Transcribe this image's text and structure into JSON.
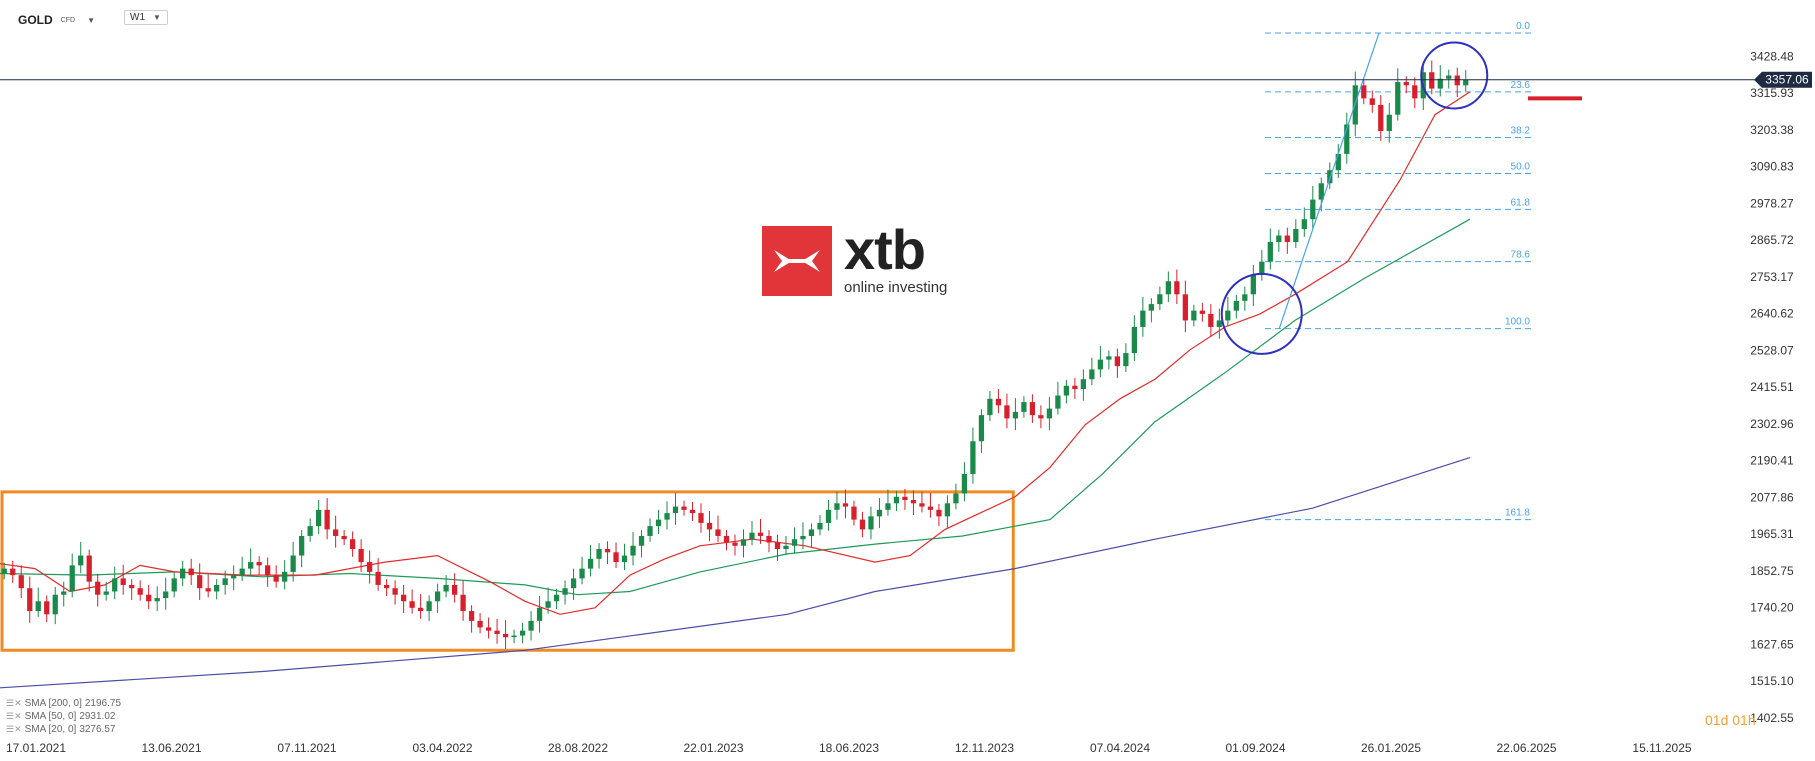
{
  "toolbar": {
    "symbol": "GOLD",
    "symbol_type": "CFD",
    "timeframe": "W1"
  },
  "logo": {
    "wordmark": "xtb",
    "tagline": "online investing"
  },
  "timer": {
    "days": "01",
    "d_unit": "d",
    "hours": "01",
    "h_unit": "h"
  },
  "legend": [
    {
      "label": "SMA [200, 0]",
      "value": "2196.75"
    },
    {
      "label": "SMA [50, 0]",
      "value": "2931.02"
    },
    {
      "label": "SMA [20, 0]",
      "value": "3276.57"
    }
  ],
  "chart_data": {
    "type": "candlestick",
    "instrument": "GOLD",
    "timeframe": "W1",
    "ylim": [
      1402.55,
      3540.0
    ],
    "y_ticks": [
      3428.48,
      3315.93,
      3203.38,
      3090.83,
      2978.27,
      2865.72,
      2753.17,
      2640.62,
      2528.07,
      2415.51,
      2302.96,
      2190.41,
      2077.86,
      1965.31,
      1852.75,
      1740.2,
      1627.65,
      1515.1,
      1402.55
    ],
    "x_ticks": [
      "17.01.2021",
      "13.06.2021",
      "07.11.2021",
      "03.04.2022",
      "28.08.2022",
      "22.01.2023",
      "18.06.2023",
      "12.11.2023",
      "07.04.2024",
      "01.09.2024",
      "26.01.2025",
      "22.06.2025",
      "15.11.2025"
    ],
    "current_price": {
      "value": 3357.06,
      "label": "3357.06",
      "color": "#1f2a44"
    },
    "fib_levels": [
      {
        "label": "0.0",
        "value": 3500.0
      },
      {
        "label": "23.6",
        "value": 3320.0
      },
      {
        "label": "38.2",
        "value": 3180.0
      },
      {
        "label": "50.0",
        "value": 3070.0
      },
      {
        "label": "61.8",
        "value": 2960.0
      },
      {
        "label": "78.6",
        "value": 2800.0
      },
      {
        "label": "100.0",
        "value": 2595.0
      },
      {
        "label": "161.8",
        "value": 2010.0
      }
    ],
    "support_level": 3300,
    "range_box": {
      "x_start": 0,
      "x_end": 0.579,
      "y_top": 2095,
      "y_bottom": 1610,
      "color": "#f08a24"
    },
    "trendline": [
      {
        "x": 0.731,
        "y": 2595
      },
      {
        "x": 0.788,
        "y": 3500
      }
    ],
    "circles": [
      {
        "x": 0.721,
        "y": 2640,
        "r": 40
      },
      {
        "x": 0.831,
        "y": 3370,
        "r": 33
      }
    ],
    "colors": {
      "up": "#1a8a4a",
      "down": "#d8202c",
      "sma20": "#e32b2b",
      "sma50": "#1f9a5a",
      "sma200": "#4a4ea8",
      "fib": "#4aa3e8",
      "axis_text": "#333333"
    },
    "sma200": [
      [
        0.0,
        1495
      ],
      [
        0.15,
        1545
      ],
      [
        0.3,
        1610
      ],
      [
        0.45,
        1720
      ],
      [
        0.5,
        1790
      ],
      [
        0.58,
        1860
      ],
      [
        0.66,
        1950
      ],
      [
        0.75,
        2045
      ],
      [
        0.84,
        2200
      ]
    ],
    "sma50": [
      [
        0.0,
        1845
      ],
      [
        0.05,
        1840
      ],
      [
        0.1,
        1850
      ],
      [
        0.15,
        1835
      ],
      [
        0.2,
        1845
      ],
      [
        0.25,
        1830
      ],
      [
        0.3,
        1810
      ],
      [
        0.33,
        1780
      ],
      [
        0.36,
        1790
      ],
      [
        0.4,
        1850
      ],
      [
        0.45,
        1905
      ],
      [
        0.5,
        1935
      ],
      [
        0.55,
        1960
      ],
      [
        0.58,
        1990
      ],
      [
        0.6,
        2010
      ],
      [
        0.63,
        2150
      ],
      [
        0.66,
        2310
      ],
      [
        0.7,
        2460
      ],
      [
        0.74,
        2620
      ],
      [
        0.78,
        2750
      ],
      [
        0.84,
        2930
      ]
    ],
    "sma20": [
      [
        0.0,
        1875
      ],
      [
        0.02,
        1860
      ],
      [
        0.04,
        1790
      ],
      [
        0.06,
        1810
      ],
      [
        0.08,
        1870
      ],
      [
        0.1,
        1850
      ],
      [
        0.14,
        1840
      ],
      [
        0.18,
        1840
      ],
      [
        0.22,
        1880
      ],
      [
        0.25,
        1900
      ],
      [
        0.28,
        1820
      ],
      [
        0.3,
        1760
      ],
      [
        0.32,
        1720
      ],
      [
        0.34,
        1740
      ],
      [
        0.36,
        1840
      ],
      [
        0.38,
        1890
      ],
      [
        0.4,
        1930
      ],
      [
        0.43,
        1950
      ],
      [
        0.46,
        1930
      ],
      [
        0.5,
        1880
      ],
      [
        0.52,
        1900
      ],
      [
        0.54,
        1980
      ],
      [
        0.56,
        2030
      ],
      [
        0.58,
        2080
      ],
      [
        0.6,
        2170
      ],
      [
        0.62,
        2300
      ],
      [
        0.64,
        2380
      ],
      [
        0.66,
        2440
      ],
      [
        0.68,
        2530
      ],
      [
        0.7,
        2600
      ],
      [
        0.72,
        2640
      ],
      [
        0.74,
        2700
      ],
      [
        0.77,
        2800
      ],
      [
        0.8,
        3050
      ],
      [
        0.82,
        3250
      ],
      [
        0.84,
        3320
      ]
    ],
    "closes": [
      1860,
      1840,
      1800,
      1730,
      1760,
      1720,
      1780,
      1790,
      1870,
      1900,
      1820,
      1780,
      1790,
      1830,
      1810,
      1800,
      1780,
      1760,
      1770,
      1790,
      1830,
      1860,
      1840,
      1800,
      1790,
      1810,
      1830,
      1840,
      1860,
      1880,
      1870,
      1840,
      1820,
      1850,
      1900,
      1960,
      1990,
      2040,
      1980,
      1960,
      1950,
      1920,
      1880,
      1850,
      1810,
      1800,
      1780,
      1760,
      1740,
      1730,
      1760,
      1790,
      1810,
      1780,
      1730,
      1700,
      1680,
      1670,
      1660,
      1650,
      1655,
      1670,
      1700,
      1740,
      1760,
      1780,
      1800,
      1830,
      1860,
      1890,
      1920,
      1910,
      1880,
      1900,
      1930,
      1960,
      1990,
      2010,
      2030,
      2050,
      2040,
      2030,
      2000,
      1980,
      1960,
      1940,
      1930,
      1950,
      1970,
      1960,
      1940,
      1920,
      1930,
      1950,
      1960,
      1980,
      2000,
      2040,
      2060,
      2050,
      2010,
      1980,
      2020,
      2040,
      2060,
      2080,
      2070,
      2060,
      2050,
      2040,
      2020,
      2060,
      2090,
      2150,
      2250,
      2330,
      2380,
      2360,
      2320,
      2340,
      2370,
      2330,
      2320,
      2350,
      2390,
      2420,
      2410,
      2440,
      2470,
      2500,
      2510,
      2480,
      2520,
      2600,
      2650,
      2670,
      2700,
      2740,
      2700,
      2620,
      2650,
      2640,
      2600,
      2620,
      2650,
      2680,
      2700,
      2760,
      2800,
      2860,
      2880,
      2860,
      2900,
      2930,
      2990,
      3040,
      3080,
      3130,
      3220,
      3340,
      3300,
      3280,
      3200,
      3250,
      3350,
      3340,
      3300,
      3380,
      3330,
      3360,
      3370,
      3340,
      3357
    ]
  }
}
